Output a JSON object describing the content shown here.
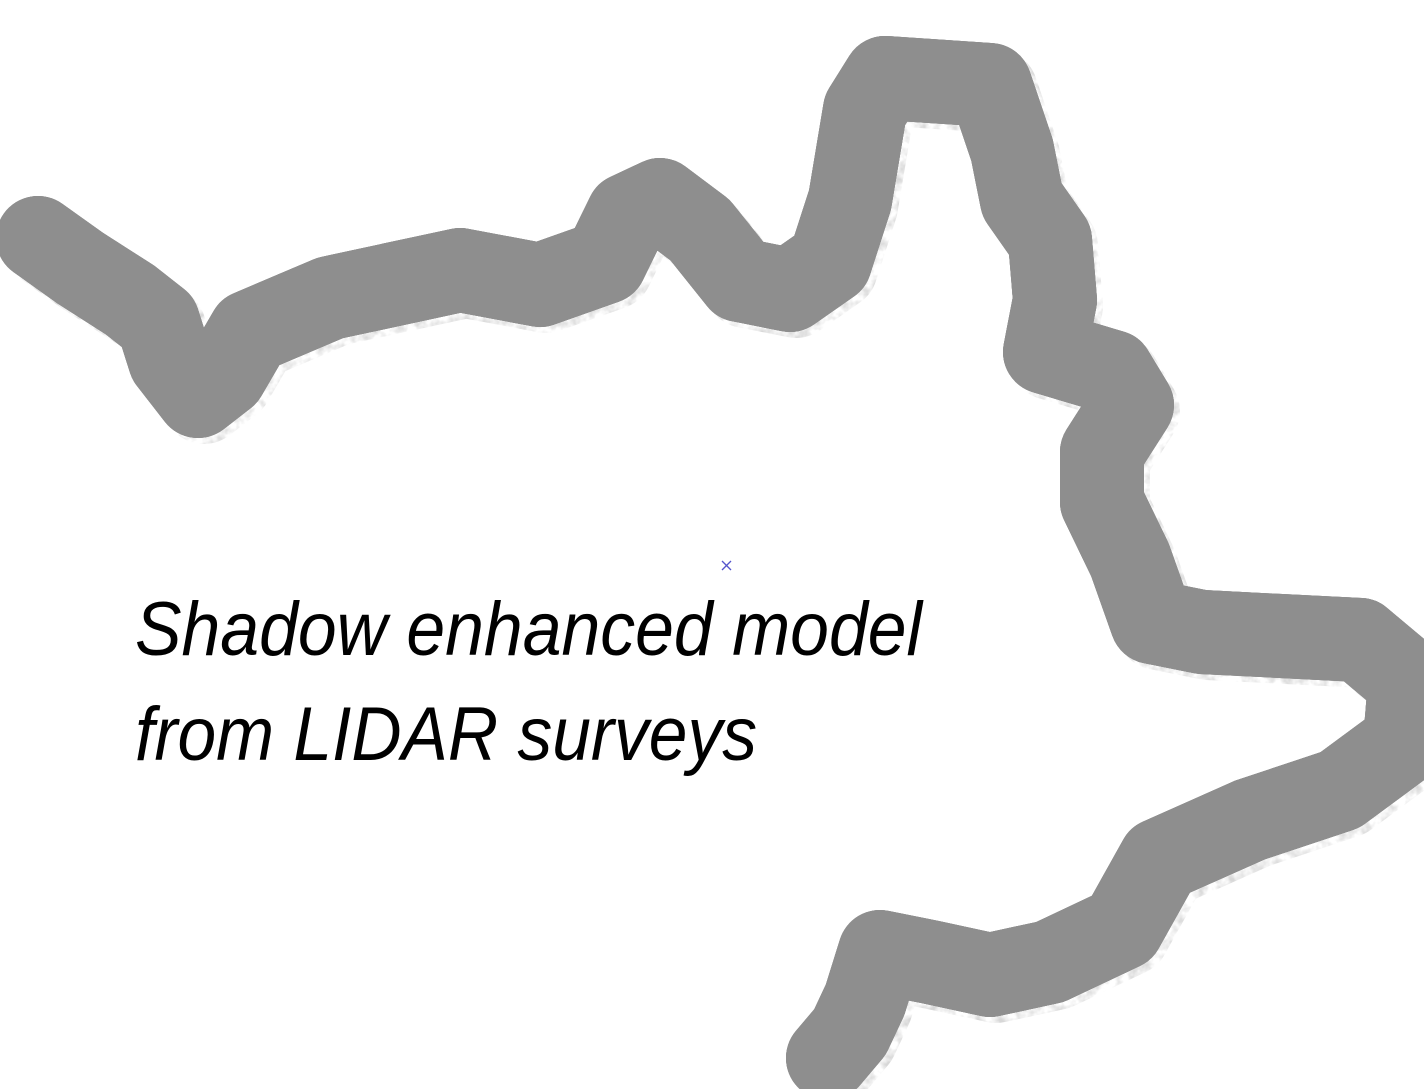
{
  "caption": {
    "lines": [
      "Shadow enhanced model",
      "from LIDAR surveys"
    ]
  }
}
